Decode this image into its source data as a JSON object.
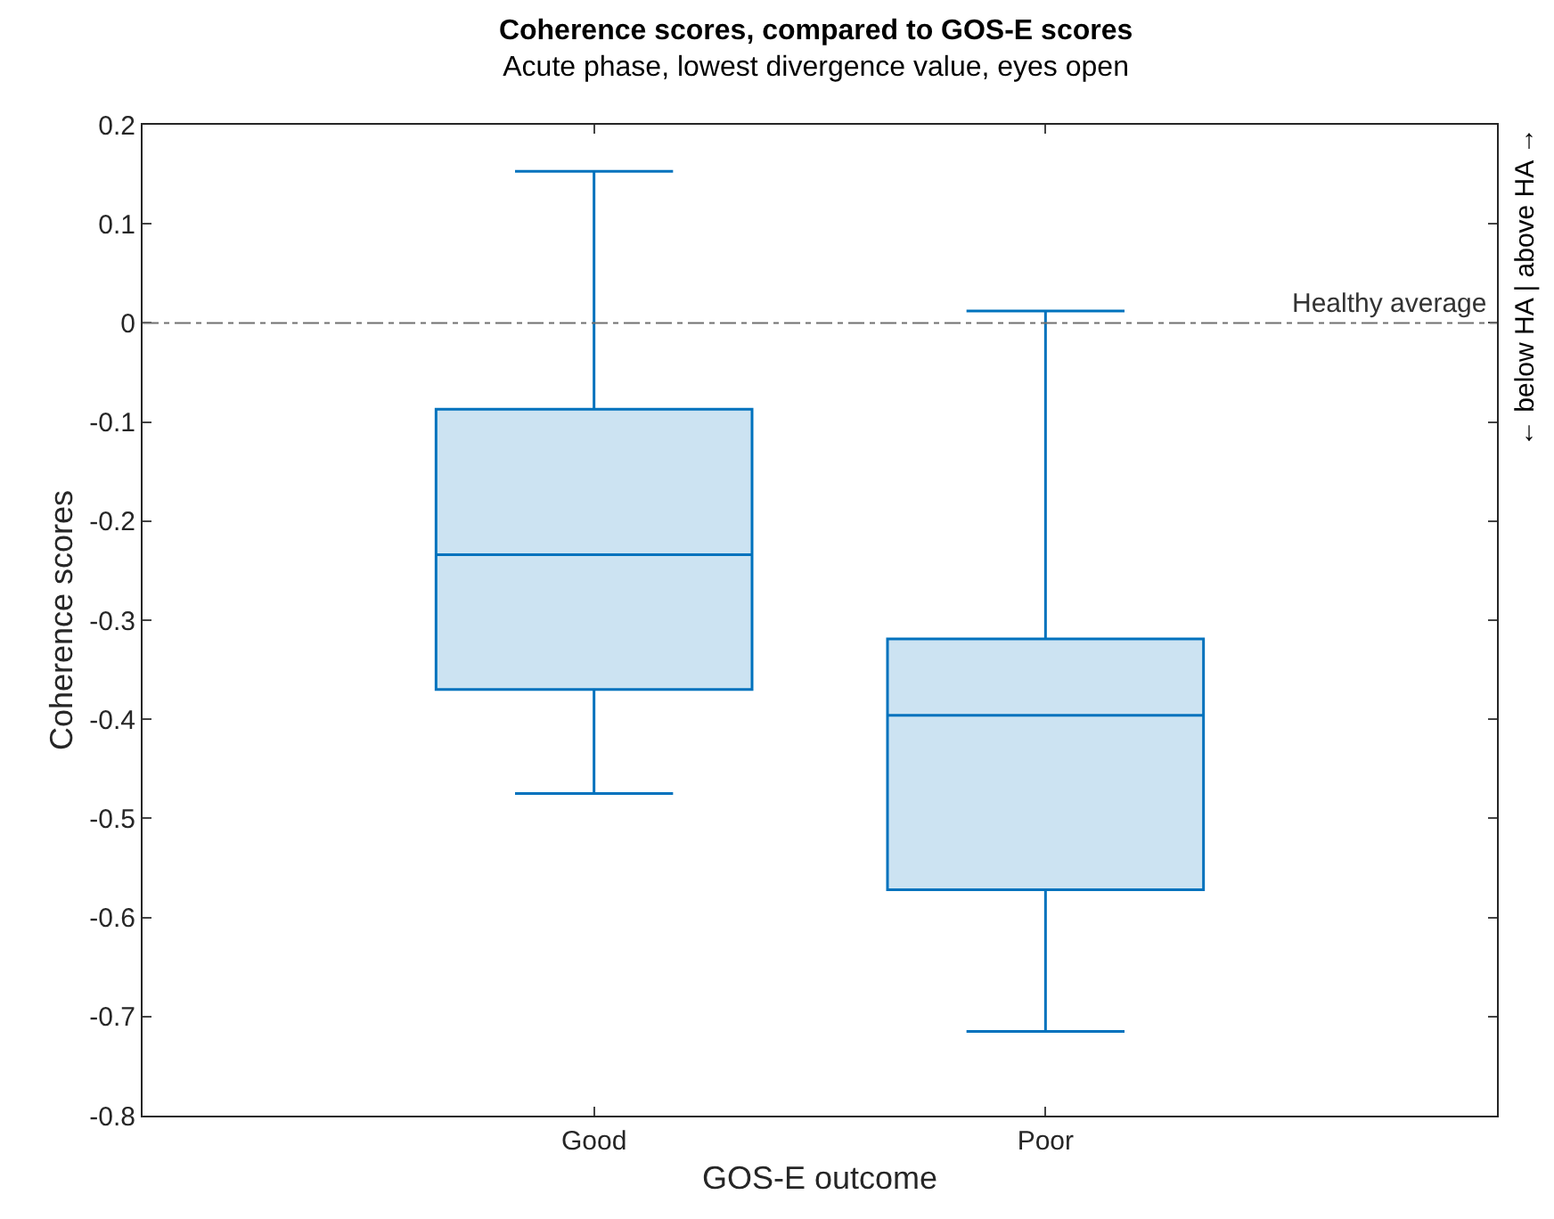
{
  "chart_data": {
    "type": "box",
    "title": "Coherence scores, compared to GOS-E scores",
    "subtitle": "Acute phase, lowest divergence value, eyes open",
    "xlabel": "GOS-E outcome",
    "ylabel": "Coherence scores",
    "y2label": "← below HA | above HA →",
    "categories": [
      "Good",
      "Poor"
    ],
    "series": [
      {
        "color": "#0072bd",
        "boxes": [
          {
            "low": -0.475,
            "q1": -0.37,
            "median": -0.234,
            "q3": -0.087,
            "high": 0.153
          },
          {
            "low": -0.715,
            "q1": -0.572,
            "median": -0.396,
            "q3": -0.319,
            "high": 0.012
          }
        ]
      }
    ],
    "ylim": [
      -0.8,
      0.2
    ],
    "yticks": [
      -0.8,
      -0.7,
      -0.6,
      -0.5,
      -0.4,
      -0.3,
      -0.2,
      -0.1,
      0,
      0.1,
      0.2
    ],
    "ref_lines": [
      {
        "axis": "y",
        "value": 0,
        "label": "Healthy average",
        "color": "#707070",
        "line_style": "dashdot"
      }
    ]
  }
}
